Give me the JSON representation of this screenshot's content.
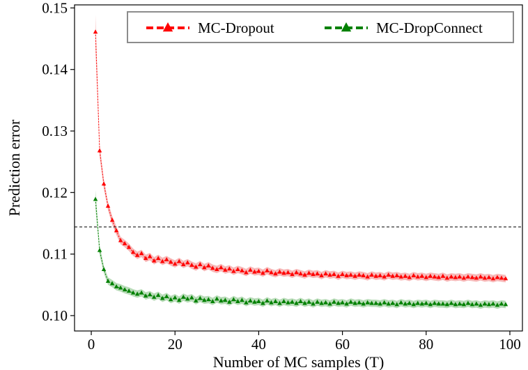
{
  "chart_data": {
    "type": "line",
    "xlabel": "Number of MC samples (T)",
    "ylabel": "Prediction error",
    "xlim": [
      -4,
      103
    ],
    "ylim": [
      0.0975,
      0.1505
    ],
    "xticks": [
      0,
      20,
      40,
      60,
      80,
      100
    ],
    "xtick_labels": [
      "0",
      "20",
      "40",
      "60",
      "80",
      "100"
    ],
    "yticks": [
      0.1,
      0.11,
      0.12,
      0.13,
      0.14,
      0.15
    ],
    "ytick_labels": [
      "0.10",
      "0.11",
      "0.12",
      "0.13",
      "0.14",
      "0.15"
    ],
    "reference_line": {
      "y": 0.1144,
      "style": "dashed",
      "color": "#000000"
    },
    "legend_position": "top-right",
    "series": [
      {
        "name": "MC-Dropout",
        "color": "#ff0000",
        "band_color": "#f08080",
        "x": [
          1,
          2,
          3,
          4,
          5,
          6,
          7,
          8,
          9,
          10,
          11,
          12,
          13,
          14,
          15,
          16,
          17,
          18,
          19,
          20,
          21,
          22,
          23,
          24,
          25,
          26,
          27,
          28,
          29,
          30,
          31,
          32,
          33,
          34,
          35,
          36,
          37,
          38,
          39,
          40,
          41,
          42,
          43,
          44,
          45,
          46,
          47,
          48,
          49,
          50,
          51,
          52,
          53,
          54,
          55,
          56,
          57,
          58,
          59,
          60,
          61,
          62,
          63,
          64,
          65,
          66,
          67,
          68,
          69,
          70,
          71,
          72,
          73,
          74,
          75,
          76,
          77,
          78,
          79,
          80,
          81,
          82,
          83,
          84,
          85,
          86,
          87,
          88,
          89,
          90,
          91,
          92,
          93,
          94,
          95,
          96,
          97,
          98,
          99
        ],
        "values": [
          0.1461,
          0.1268,
          0.1214,
          0.1178,
          0.1155,
          0.1138,
          0.1122,
          0.1117,
          0.1111,
          0.1103,
          0.1098,
          0.1101,
          0.1093,
          0.1096,
          0.1089,
          0.1093,
          0.1088,
          0.1091,
          0.1087,
          0.1084,
          0.1088,
          0.1083,
          0.1086,
          0.1082,
          0.1079,
          0.1083,
          0.1078,
          0.1081,
          0.1077,
          0.1075,
          0.1078,
          0.1074,
          0.1076,
          0.1072,
          0.1075,
          0.1073,
          0.107,
          0.1074,
          0.1071,
          0.1072,
          0.1069,
          0.1073,
          0.107,
          0.1068,
          0.1071,
          0.1069,
          0.107,
          0.1067,
          0.107,
          0.1068,
          0.1066,
          0.1069,
          0.1067,
          0.1068,
          0.1065,
          0.1068,
          0.1066,
          0.1067,
          0.1064,
          0.1067,
          0.1065,
          0.1066,
          0.1064,
          0.1066,
          0.1065,
          0.1063,
          0.1066,
          0.1064,
          0.1065,
          0.1063,
          0.1066,
          0.1064,
          0.1065,
          0.1063,
          0.1064,
          0.1062,
          0.1065,
          0.1063,
          0.1064,
          0.1062,
          0.1064,
          0.1063,
          0.1062,
          0.1064,
          0.1061,
          0.1063,
          0.1062,
          0.1063,
          0.1061,
          0.1063,
          0.1062,
          0.1061,
          0.1063,
          0.1061,
          0.1062,
          0.106,
          0.1062,
          0.1061,
          0.106
        ],
        "band_halfwidth": [
          0.0028,
          0.001,
          0.0008,
          0.0007,
          0.0007,
          0.0007,
          0.0006,
          0.0006,
          0.0006,
          0.0006,
          0.0006,
          0.0006,
          0.0006,
          0.0006,
          0.0006,
          0.0006,
          0.0006,
          0.0006,
          0.0006,
          0.0006,
          0.0006,
          0.0006,
          0.0006,
          0.0006,
          0.0006,
          0.0006,
          0.0006,
          0.0006,
          0.0006,
          0.0006,
          0.0006,
          0.0006,
          0.0006,
          0.0006,
          0.0006,
          0.0006,
          0.0006,
          0.0006,
          0.0006,
          0.0006,
          0.0006,
          0.0006,
          0.0006,
          0.0006,
          0.0006,
          0.0006,
          0.0006,
          0.0006,
          0.0006,
          0.0006,
          0.0006,
          0.0006,
          0.0006,
          0.0006,
          0.0006,
          0.0006,
          0.0006,
          0.0006,
          0.0006,
          0.0006,
          0.0006,
          0.0006,
          0.0006,
          0.0006,
          0.0006,
          0.0006,
          0.0006,
          0.0006,
          0.0006,
          0.0006,
          0.0006,
          0.0006,
          0.0006,
          0.0006,
          0.0006,
          0.0006,
          0.0006,
          0.0006,
          0.0006,
          0.0006,
          0.0006,
          0.0006,
          0.0006,
          0.0006,
          0.0006,
          0.0006,
          0.0006,
          0.0006,
          0.0006,
          0.0006,
          0.0006,
          0.0006,
          0.0006,
          0.0006,
          0.0006,
          0.0006,
          0.0006,
          0.0006,
          0.0006
        ]
      },
      {
        "name": "MC-DropConnect",
        "color": "#008000",
        "band_color": "#7fbf7f",
        "x": [
          1,
          2,
          3,
          4,
          5,
          6,
          7,
          8,
          9,
          10,
          11,
          12,
          13,
          14,
          15,
          16,
          17,
          18,
          19,
          20,
          21,
          22,
          23,
          24,
          25,
          26,
          27,
          28,
          29,
          30,
          31,
          32,
          33,
          34,
          35,
          36,
          37,
          38,
          39,
          40,
          41,
          42,
          43,
          44,
          45,
          46,
          47,
          48,
          49,
          50,
          51,
          52,
          53,
          54,
          55,
          56,
          57,
          58,
          59,
          60,
          61,
          62,
          63,
          64,
          65,
          66,
          67,
          68,
          69,
          70,
          71,
          72,
          73,
          74,
          75,
          76,
          77,
          78,
          79,
          80,
          81,
          82,
          83,
          84,
          85,
          86,
          87,
          88,
          89,
          90,
          91,
          92,
          93,
          94,
          95,
          96,
          97,
          98,
          99
        ],
        "values": [
          0.1189,
          0.1106,
          0.1075,
          0.1056,
          0.1052,
          0.1047,
          0.1045,
          0.1042,
          0.104,
          0.1037,
          0.1035,
          0.1037,
          0.1032,
          0.1034,
          0.103,
          0.1033,
          0.1028,
          0.1031,
          0.1026,
          0.1029,
          0.1025,
          0.103,
          0.1027,
          0.1029,
          0.1024,
          0.1028,
          0.1025,
          0.1026,
          0.1023,
          0.1027,
          0.1024,
          0.1025,
          0.1022,
          0.1026,
          0.1023,
          0.1025,
          0.1021,
          0.1024,
          0.1022,
          0.1023,
          0.102,
          0.1024,
          0.1021,
          0.1023,
          0.102,
          0.1023,
          0.1021,
          0.1022,
          0.102,
          0.1023,
          0.102,
          0.1022,
          0.1019,
          0.1022,
          0.102,
          0.1021,
          0.1019,
          0.1022,
          0.102,
          0.1021,
          0.1019,
          0.1022,
          0.102,
          0.1021,
          0.1019,
          0.1021,
          0.102,
          0.102,
          0.1019,
          0.1021,
          0.1019,
          0.102,
          0.1018,
          0.1021,
          0.1019,
          0.102,
          0.1018,
          0.102,
          0.1019,
          0.102,
          0.1018,
          0.102,
          0.1019,
          0.1019,
          0.1018,
          0.102,
          0.1018,
          0.1019,
          0.1018,
          0.102,
          0.1018,
          0.1019,
          0.1017,
          0.1019,
          0.1018,
          0.1019,
          0.1017,
          0.1019,
          0.1018
        ],
        "band_halfwidth": [
          0.0015,
          0.0008,
          0.0006,
          0.0006,
          0.0006,
          0.0006,
          0.0006,
          0.0006,
          0.0006,
          0.0006,
          0.0006,
          0.0006,
          0.0006,
          0.0006,
          0.0006,
          0.0006,
          0.0006,
          0.0006,
          0.0006,
          0.0006,
          0.0006,
          0.0006,
          0.0006,
          0.0006,
          0.0006,
          0.0006,
          0.0006,
          0.0006,
          0.0006,
          0.0006,
          0.0006,
          0.0006,
          0.0006,
          0.0006,
          0.0006,
          0.0006,
          0.0006,
          0.0006,
          0.0006,
          0.0006,
          0.0006,
          0.0006,
          0.0006,
          0.0006,
          0.0006,
          0.0006,
          0.0006,
          0.0006,
          0.0006,
          0.0006,
          0.0006,
          0.0006,
          0.0006,
          0.0006,
          0.0006,
          0.0006,
          0.0006,
          0.0006,
          0.0006,
          0.0006,
          0.0006,
          0.0006,
          0.0006,
          0.0006,
          0.0006,
          0.0006,
          0.0006,
          0.0006,
          0.0006,
          0.0006,
          0.0006,
          0.0006,
          0.0006,
          0.0006,
          0.0006,
          0.0006,
          0.0006,
          0.0006,
          0.0006,
          0.0006,
          0.0006,
          0.0006,
          0.0006,
          0.0006,
          0.0006,
          0.0006,
          0.0006,
          0.0006,
          0.0006,
          0.0006,
          0.0006,
          0.0006,
          0.0006,
          0.0006,
          0.0006,
          0.0006,
          0.0006,
          0.0006,
          0.0006
        ]
      }
    ]
  }
}
